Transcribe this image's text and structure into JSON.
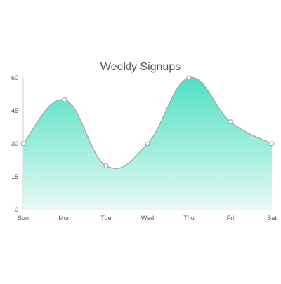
{
  "chart_data": {
    "type": "area",
    "title": "Weekly Signups",
    "xlabel": "",
    "ylabel": "",
    "categories": [
      "Sun",
      "Mon",
      "Tue",
      "Wed",
      "Thu",
      "Fri",
      "Sat"
    ],
    "series": [
      {
        "values": [
          30,
          50,
          20,
          30,
          60,
          40,
          30
        ]
      }
    ],
    "ylim": [
      0,
      60
    ],
    "yticks": [
      0,
      15,
      30,
      45,
      60
    ],
    "grid": false,
    "legend": "none",
    "colors": {
      "area_top": "#4fe0c2",
      "area_bottom": "#e6faf5",
      "line": "#aaaaaa",
      "marker_fill": "#ffffff",
      "marker_stroke": "#999999"
    }
  }
}
